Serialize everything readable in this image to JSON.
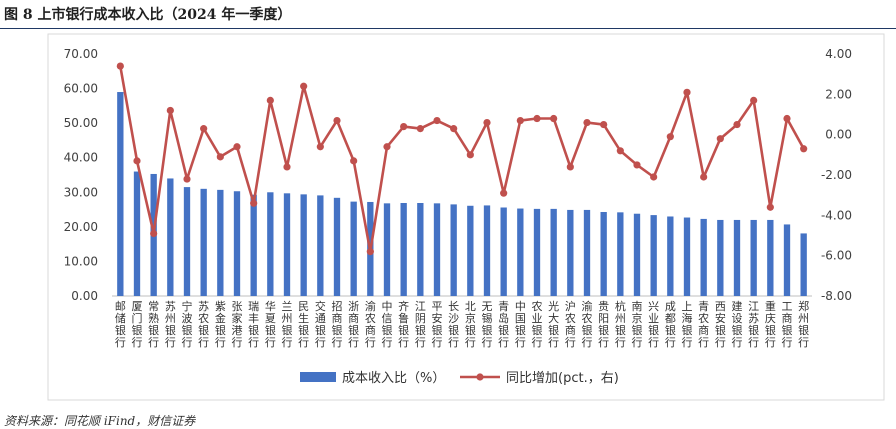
{
  "figure": {
    "title": "图 8  上市银行成本收入比（2024 年一季度）",
    "source": "资料来源：同花顺 iFind，财信证券"
  },
  "chart_data": {
    "type": "bar",
    "categories": [
      "邮储银行",
      "厦门银行",
      "常熟银行",
      "苏州银行",
      "宁波银行",
      "苏农银行",
      "紫金银行",
      "张家港行",
      "瑞丰银行",
      "华夏银行",
      "兰州银行",
      "民生银行",
      "交通银行",
      "招商银行",
      "浙商银行",
      "渝农商行",
      "中信银行",
      "齐鲁银行",
      "江阴银行",
      "平安银行",
      "长沙银行",
      "北京银行",
      "无锡银行",
      "青岛银行",
      "中国银行",
      "农业银行",
      "光大银行",
      "沪农商行",
      "渝农银行",
      "贵阳银行",
      "杭州银行",
      "南京银行",
      "兴业银行",
      "成都银行",
      "上海银行",
      "青农商行",
      "西安银行",
      "建设银行",
      "江苏银行",
      "重庆银行",
      "工商银行",
      "郑州银行"
    ],
    "series": [
      {
        "name": "成本收入比（%）",
        "type": "bar",
        "axis": "left",
        "color": "#4472c4",
        "values": [
          59.0,
          36.0,
          35.3,
          34.0,
          31.5,
          31.0,
          30.7,
          30.3,
          29.3,
          30.0,
          29.7,
          29.4,
          29.1,
          28.4,
          27.3,
          27.2,
          26.8,
          26.9,
          26.9,
          26.8,
          26.5,
          26.1,
          26.2,
          25.6,
          25.3,
          25.2,
          25.2,
          24.9,
          24.9,
          24.3,
          24.2,
          23.8,
          23.4,
          23.0,
          22.7,
          22.3,
          22.0,
          22.0,
          22.0,
          22.0,
          20.7,
          18.1
        ]
      },
      {
        "name": "同比增加(pct.，右)",
        "type": "line",
        "axis": "right",
        "color": "#c0504d",
        "values": [
          3.4,
          -1.3,
          -4.9,
          1.2,
          -2.2,
          0.3,
          -1.1,
          -0.6,
          -3.4,
          1.7,
          -1.6,
          2.4,
          -0.6,
          0.7,
          -1.3,
          -5.8,
          -0.6,
          0.4,
          0.3,
          0.7,
          0.3,
          -1.0,
          0.6,
          -2.9,
          0.7,
          0.8,
          0.8,
          -1.6,
          0.6,
          0.5,
          -0.8,
          -1.5,
          -2.1,
          -0.1,
          2.1,
          -2.1,
          -0.2,
          0.5,
          1.7,
          -3.6,
          0.8,
          -0.7
        ]
      }
    ],
    "y_left": {
      "min": 0,
      "max": 70,
      "ticks": [
        "0.00",
        "10.00",
        "20.00",
        "30.00",
        "40.00",
        "50.00",
        "60.00",
        "70.00"
      ]
    },
    "y_right": {
      "min": -8,
      "max": 4,
      "ticks": [
        "-8.00",
        "-6.00",
        "-4.00",
        "-2.00",
        "0.00",
        "2.00",
        "4.00"
      ]
    },
    "grid": false,
    "legend_position": "bottom"
  }
}
